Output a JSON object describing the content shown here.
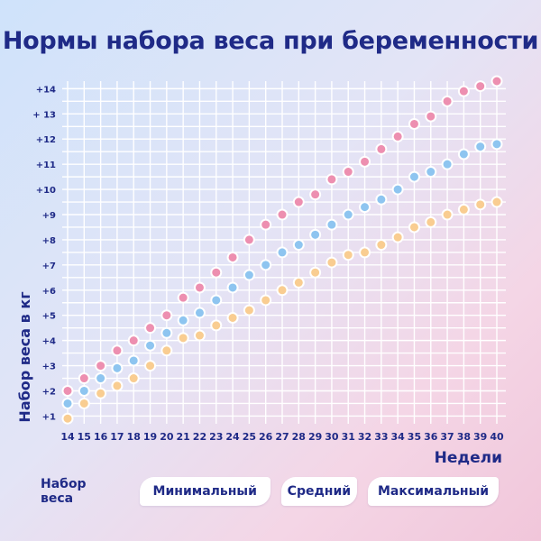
{
  "title": "Нормы набора веса при беременности",
  "legend": {
    "label": "Набор веса",
    "items": [
      {
        "label": "Минимальный",
        "color": "#f9cd91"
      },
      {
        "label": "Средний",
        "color": "#8ec5f0"
      },
      {
        "label": "Максимальный",
        "color": "#ed8fb0"
      }
    ]
  },
  "chart_data": {
    "type": "scatter",
    "title": "Нормы набора веса при беременности",
    "xlabel": "Недели",
    "ylabel": "Набор веса в кг",
    "xlim": [
      14,
      40
    ],
    "ylim": [
      0.8,
      14.3
    ],
    "grid": true,
    "x_ticks": [
      "14",
      "15",
      "16",
      "17",
      "18",
      "19",
      "20",
      "21",
      "22",
      "23",
      "24",
      "25",
      "26",
      "27",
      "28",
      "29",
      "30",
      "31",
      "32",
      "33",
      "34",
      "35",
      "36",
      "37",
      "38",
      "39",
      "40"
    ],
    "y_ticks": [
      "+1",
      "+2",
      "+3",
      "+4",
      "+5",
      "+6",
      "+7",
      "+8",
      "+9",
      "+10",
      "+11",
      "+12",
      "+ 13",
      "+14"
    ],
    "x": [
      14,
      15,
      16,
      17,
      18,
      19,
      20,
      21,
      22,
      23,
      24,
      25,
      26,
      27,
      28,
      29,
      30,
      31,
      32,
      33,
      34,
      35,
      36,
      37,
      38,
      39,
      40
    ],
    "series": [
      {
        "name": "Минимальный",
        "color": "#f9cd91",
        "values": [
          0.9,
          1.5,
          1.9,
          2.2,
          2.5,
          3.0,
          3.6,
          4.1,
          4.2,
          4.6,
          4.9,
          5.2,
          5.6,
          6.0,
          6.3,
          6.7,
          7.1,
          7.4,
          7.5,
          7.8,
          8.1,
          8.5,
          8.7,
          9.0,
          9.2,
          9.4,
          9.5
        ]
      },
      {
        "name": "Средний",
        "color": "#8ec5f0",
        "values": [
          1.5,
          2.0,
          2.5,
          2.9,
          3.2,
          3.8,
          4.3,
          4.8,
          5.1,
          5.6,
          6.1,
          6.6,
          7.0,
          7.5,
          7.8,
          8.2,
          8.6,
          9.0,
          9.3,
          9.6,
          10.0,
          10.5,
          10.7,
          11.0,
          11.4,
          11.7,
          11.8
        ]
      },
      {
        "name": "Максимальный",
        "color": "#ed8fb0",
        "values": [
          2.0,
          2.5,
          3.0,
          3.6,
          4.0,
          4.5,
          5.0,
          5.7,
          6.1,
          6.7,
          7.3,
          8.0,
          8.6,
          9.0,
          9.5,
          9.8,
          10.4,
          10.7,
          11.1,
          11.6,
          12.1,
          12.6,
          12.9,
          13.5,
          13.9,
          14.1,
          14.3
        ]
      }
    ]
  }
}
